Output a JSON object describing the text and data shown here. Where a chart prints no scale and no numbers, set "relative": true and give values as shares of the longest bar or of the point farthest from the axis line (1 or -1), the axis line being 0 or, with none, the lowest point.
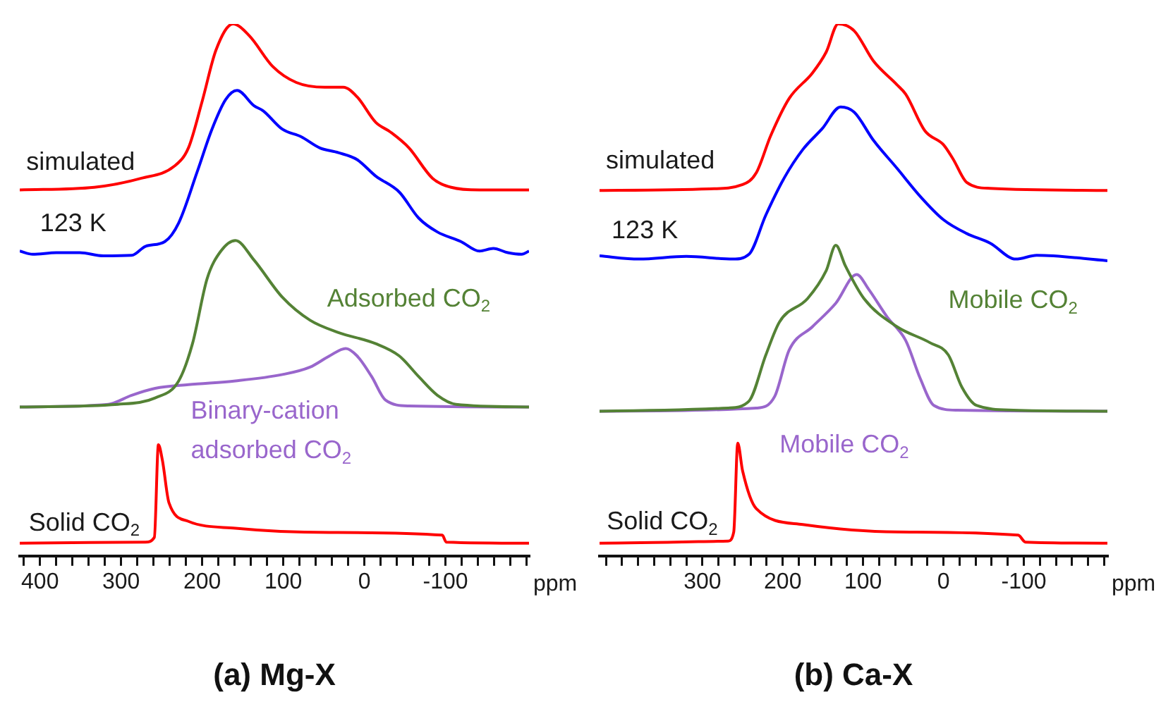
{
  "chart_data": [
    {
      "type": "line",
      "title": "(a) Mg-X",
      "xlabel": "ppm",
      "relative": true,
      "grid": false,
      "legend": false,
      "marker": "none",
      "xlim": [
        425,
        -203
      ],
      "xticks": [
        {
          "value": 420,
          "label": null
        },
        400,
        {
          "value": 380,
          "label": null
        },
        {
          "value": 360,
          "label": null
        },
        {
          "value": 340,
          "label": null
        },
        {
          "value": 320,
          "label": null
        },
        300,
        {
          "value": 280,
          "label": null
        },
        {
          "value": 260,
          "label": null
        },
        {
          "value": 240,
          "label": null
        },
        {
          "value": 220,
          "label": null
        },
        200,
        {
          "value": 180,
          "label": null
        },
        {
          "value": 160,
          "label": null
        },
        {
          "value": 140,
          "label": null
        },
        {
          "value": 120,
          "label": null
        },
        100,
        {
          "value": 80,
          "label": null
        },
        {
          "value": 60,
          "label": null
        },
        {
          "value": 40,
          "label": null
        },
        {
          "value": 20,
          "label": null
        },
        0,
        {
          "value": -20,
          "label": null
        },
        {
          "value": -40,
          "label": null
        },
        {
          "value": -60,
          "label": null
        },
        {
          "value": -80,
          "label": null
        },
        -100,
        {
          "value": -120,
          "label": null
        },
        {
          "value": -140,
          "label": null
        },
        {
          "value": -160,
          "label": null
        },
        {
          "value": -180,
          "label": null
        },
        {
          "value": -200,
          "label": null
        }
      ],
      "series": [
        {
          "name": "simulated",
          "color": "#ff0000",
          "x": [
            425,
            333,
            275,
            235,
            217,
            200,
            183,
            162,
            142,
            113,
            84,
            49,
            26,
            9,
            -14,
            -32,
            -55,
            -84,
            -107,
            -142,
            -203
          ],
          "values": [
            0.688,
            0.693,
            0.71,
            0.732,
            0.767,
            0.855,
            0.951,
            1,
            0.978,
            0.92,
            0.89,
            0.881,
            0.881,
            0.863,
            0.815,
            0.797,
            0.767,
            0.71,
            0.693,
            0.688,
            0.688
          ]
        },
        {
          "name": "123 K",
          "color": "#0000ff",
          "x": [
            425,
            409,
            380,
            351,
            322,
            287,
            270,
            246,
            229,
            206,
            188,
            171,
            157,
            136,
            125,
            101,
            78,
            55,
            32,
            9,
            -14,
            -43,
            -67,
            -90,
            -119,
            -142,
            -159,
            -177,
            -194,
            -203
          ],
          "values": [
            0.573,
            0.567,
            0.57,
            0.57,
            0.564,
            0.565,
            0.582,
            0.591,
            0.626,
            0.723,
            0.802,
            0.858,
            0.875,
            0.846,
            0.837,
            0.802,
            0.788,
            0.767,
            0.758,
            0.745,
            0.714,
            0.684,
            0.635,
            0.609,
            0.591,
            0.573,
            0.578,
            0.57,
            0.567,
            0.573
          ]
        },
        {
          "name": "Adsorbed CO$_{2}$",
          "color": "#548235",
          "x": [
            425,
            304,
            258,
            229,
            212,
            194,
            177,
            159,
            136,
            101,
            67,
            32,
            -14,
            -43,
            -67,
            -90,
            -113,
            -203
          ],
          "values": [
            0.28,
            0.285,
            0.297,
            0.329,
            0.399,
            0.521,
            0.573,
            0.593,
            0.556,
            0.486,
            0.443,
            0.42,
            0.399,
            0.376,
            0.337,
            0.302,
            0.285,
            0.28
          ]
        },
        {
          "name": "Binary-cation adsorbed CO$_{2}$",
          "color": "#9966cc",
          "x": [
            425,
            316,
            287,
            258,
            217,
            159,
            101,
            67,
            43,
            23,
            9,
            -9,
            -26,
            -55,
            -203
          ],
          "values": [
            0.28,
            0.285,
            0.302,
            0.315,
            0.322,
            0.329,
            0.341,
            0.355,
            0.376,
            0.39,
            0.376,
            0.337,
            0.293,
            0.282,
            0.28
          ]
        },
        {
          "name": "Solid CO$_{2}$",
          "color": "#ff0000",
          "x": [
            425,
            270,
            259,
            254,
            249,
            241,
            217,
            159,
            43,
            -96,
            -101,
            -203
          ],
          "values": [
            0.024,
            0.026,
            0.035,
            0.209,
            0.179,
            0.1,
            0.065,
            0.052,
            0.044,
            0.039,
            0.026,
            0.024
          ]
        }
      ]
    },
    {
      "type": "line",
      "title": "(b) Ca-X",
      "xlabel": "ppm",
      "relative": true,
      "grid": false,
      "legend": false,
      "marker": "none",
      "xlim": [
        428,
        -204
      ],
      "xticks": [
        {
          "value": 420,
          "label": null
        },
        {
          "value": 400,
          "label": null
        },
        {
          "value": 380,
          "label": null
        },
        {
          "value": 360,
          "label": null
        },
        {
          "value": 340,
          "label": null
        },
        {
          "value": 320,
          "label": null
        },
        300,
        {
          "value": 280,
          "label": null
        },
        {
          "value": 260,
          "label": null
        },
        {
          "value": 240,
          "label": null
        },
        {
          "value": 220,
          "label": null
        },
        200,
        {
          "value": 180,
          "label": null
        },
        {
          "value": 160,
          "label": null
        },
        {
          "value": 140,
          "label": null
        },
        {
          "value": 120,
          "label": null
        },
        100,
        {
          "value": 80,
          "label": null
        },
        {
          "value": 60,
          "label": null
        },
        {
          "value": 40,
          "label": null
        },
        {
          "value": 20,
          "label": null
        },
        0,
        {
          "value": -20,
          "label": null
        },
        {
          "value": -40,
          "label": null
        },
        {
          "value": -60,
          "label": null
        },
        {
          "value": -80,
          "label": null
        },
        -100,
        {
          "value": -120,
          "label": null
        },
        {
          "value": -140,
          "label": null
        },
        {
          "value": -160,
          "label": null
        },
        {
          "value": -180,
          "label": null
        },
        {
          "value": -200,
          "label": null
        }
      ],
      "series": [
        {
          "name": "simulated",
          "color": "#ff0000",
          "x": [
            428,
            291,
            250,
            233,
            215,
            192,
            163,
            146,
            131,
            111,
            87,
            58,
            47,
            23,
            0,
            -12,
            -29,
            -58,
            -204
          ],
          "values": [
            0.687,
            0.69,
            0.698,
            0.72,
            0.79,
            0.86,
            0.908,
            0.947,
            1,
            0.987,
            0.93,
            0.886,
            0.868,
            0.799,
            0.773,
            0.746,
            0.702,
            0.691,
            0.687
          ]
        },
        {
          "name": "123 K",
          "color": "#0000ff",
          "x": [
            428,
            379,
            320,
            262,
            242,
            221,
            198,
            175,
            151,
            128,
            111,
            87,
            58,
            29,
            0,
            -29,
            -58,
            -90,
            -116,
            -204
          ],
          "values": [
            0.564,
            0.558,
            0.563,
            0.558,
            0.567,
            0.641,
            0.711,
            0.764,
            0.803,
            0.844,
            0.834,
            0.781,
            0.729,
            0.676,
            0.632,
            0.606,
            0.588,
            0.558,
            0.565,
            0.555
          ]
        },
        {
          "name": "Mobile CO$_{2}$",
          "color": "#548235",
          "x": [
            428,
            268,
            242,
            221,
            204,
            169,
            146,
            134,
            122,
            99,
            58,
            17,
            -6,
            -23,
            -41,
            -87,
            -204
          ],
          "values": [
            0.272,
            0.278,
            0.291,
            0.378,
            0.44,
            0.484,
            0.536,
            0.584,
            0.545,
            0.484,
            0.431,
            0.401,
            0.378,
            0.317,
            0.283,
            0.274,
            0.272
          ]
        },
        {
          "name": "Mobile CO$_{2}$",
          "color": "#9966cc",
          "x": [
            428,
            233,
            210,
            192,
            163,
            134,
            108,
            93,
            70,
            47,
            29,
            12,
            -17,
            -204
          ],
          "values": [
            0.272,
            0.278,
            0.3,
            0.387,
            0.431,
            0.475,
            0.529,
            0.501,
            0.449,
            0.405,
            0.334,
            0.283,
            0.274,
            0.272
          ]
        },
        {
          "name": "Solid CO$_{2}$",
          "color": "#ff0000",
          "x": [
            428,
            268,
            261,
            256,
            250,
            233,
            175,
            58,
            -93,
            -102,
            -204
          ],
          "values": [
            0.024,
            0.028,
            0.045,
            0.212,
            0.16,
            0.089,
            0.059,
            0.045,
            0.039,
            0.026,
            0.024
          ]
        }
      ]
    }
  ]
}
